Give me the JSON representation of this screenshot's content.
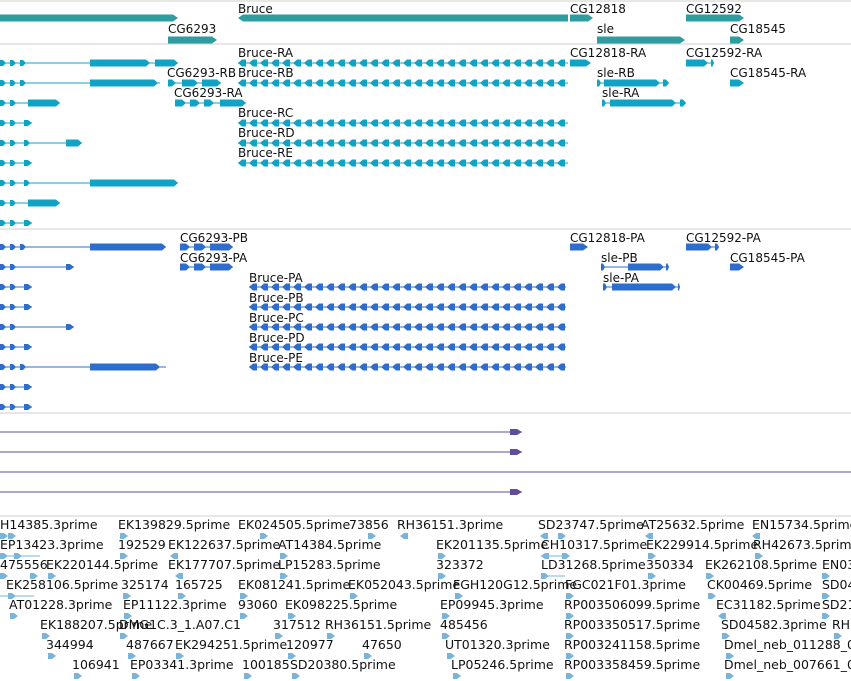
{
  "colors": {
    "gene_teal": "#2f9c9f",
    "transcript_cyan": "#11a3c4",
    "protein_blue": "#2f6dcc",
    "alignment_purple": "#5f4c9a",
    "est_light_blue": "#7ab4d9",
    "separator": "#cfcfcf"
  },
  "gene_track": {
    "labels": [
      {
        "id": "bruce",
        "text": "Bruce"
      },
      {
        "id": "cg6293",
        "text": "CG6293"
      },
      {
        "id": "cg12818",
        "text": "CG12818"
      },
      {
        "id": "sle",
        "text": "sle"
      },
      {
        "id": "cg12592",
        "text": "CG12592"
      },
      {
        "id": "cg18545",
        "text": "CG18545"
      }
    ]
  },
  "transcript_track": {
    "labels": [
      {
        "id": "bruce_ra",
        "text": "Bruce-RA"
      },
      {
        "id": "cg12818_ra",
        "text": "CG12818-RA"
      },
      {
        "id": "cg12592_ra",
        "text": "CG12592-RA"
      },
      {
        "id": "cg6293_rb",
        "text": "CG6293-RB"
      },
      {
        "id": "bruce_rb",
        "text": "Bruce-RB"
      },
      {
        "id": "sle_rb",
        "text": "sle-RB"
      },
      {
        "id": "cg18545_ra",
        "text": "CG18545-RA"
      },
      {
        "id": "cg6293_ra",
        "text": "CG6293-RA"
      },
      {
        "id": "sle_ra",
        "text": "sle-RA"
      },
      {
        "id": "bruce_rc",
        "text": "Bruce-RC"
      },
      {
        "id": "bruce_rd",
        "text": "Bruce-RD"
      },
      {
        "id": "bruce_re",
        "text": "Bruce-RE"
      }
    ]
  },
  "protein_track": {
    "labels": [
      {
        "id": "cg6293_pb",
        "text": "CG6293-PB"
      },
      {
        "id": "cg12818_pa",
        "text": "CG12818-PA"
      },
      {
        "id": "cg12592_pa",
        "text": "CG12592-PA"
      },
      {
        "id": "cg6293_pa",
        "text": "CG6293-PA"
      },
      {
        "id": "sle_pb",
        "text": "sle-PB"
      },
      {
        "id": "cg18545_pa",
        "text": "CG18545-PA"
      },
      {
        "id": "bruce_pa",
        "text": "Bruce-PA"
      },
      {
        "id": "sle_pa",
        "text": "sle-PA"
      },
      {
        "id": "bruce_pb",
        "text": "Bruce-PB"
      },
      {
        "id": "bruce_pc",
        "text": "Bruce-PC"
      },
      {
        "id": "bruce_pd",
        "text": "Bruce-PD"
      },
      {
        "id": "bruce_pe",
        "text": "Bruce-PE"
      }
    ]
  },
  "est_track": {
    "labels": [
      "H14385.3prime",
      "EK139829.5prime",
      "EK024505.5prime",
      "73856",
      "RH36151.3prime",
      "SD23747.5prime",
      "AT25632.5prime",
      "EN15734.5prime",
      "EP13423.3prime",
      "192529",
      "EK122637.5prime",
      "AT14384.5prime",
      "EK201135.5prime",
      "CH10317.5prime",
      "EK229914.5prime",
      "RH42673.5prime",
      "475556",
      "EK220144.5prime",
      "EK177707.5prime",
      "LP15283.5prime",
      "323372",
      "LD31268.5prime",
      "350334",
      "EK262108.5prime",
      "EN03",
      "EK258106.5prime",
      "325174",
      "165725",
      "EK081241.5prime",
      "EK052043.5prime",
      "FGH120G12.5prime",
      "FGC021F01.3prime",
      "CK00469.5prime",
      "SD04",
      "AT01228.3prime",
      "EP11122.3prime",
      "93060",
      "EK098225.5prime",
      "EP09945.3prime",
      "RP003506099.5prime",
      "EC31182.5prime",
      "SD21",
      "EK188207.5prime",
      "DMG1C.3_1.A07.C1",
      "317512",
      "RH36151.5prime",
      "485456",
      "RP003350517.5prime",
      "SD04582.3prime",
      "RH",
      "344994",
      "487667",
      "EK294251.5prime",
      "120977",
      "47650",
      "UT01320.3prime",
      "RP003241158.5prime",
      "Dmel_neb_011288_0",
      "106941",
      "EP03341.3prime",
      "100185",
      "SD20380.5prime",
      "LP05246.5prime",
      "RP003358459.5prime",
      "Dmel_neb_007661_0"
    ]
  }
}
